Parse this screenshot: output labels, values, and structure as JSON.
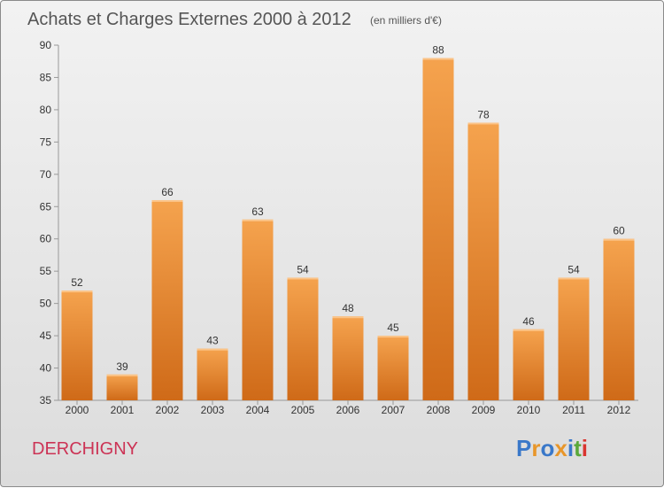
{
  "chart_data": {
    "type": "bar",
    "title": "Achats et Charges Externes 2000 à 2012",
    "subtitle": "(en milliers d'€)",
    "categories": [
      "2000",
      "2001",
      "2002",
      "2003",
      "2004",
      "2005",
      "2006",
      "2007",
      "2008",
      "2009",
      "2010",
      "2011",
      "2012"
    ],
    "values": [
      52,
      39,
      66,
      43,
      63,
      54,
      48,
      45,
      88,
      78,
      46,
      54,
      60
    ],
    "ylim": [
      35,
      90
    ],
    "yticks": [
      35,
      40,
      45,
      50,
      55,
      60,
      65,
      70,
      75,
      80,
      85,
      90
    ],
    "grid": false,
    "bar_color_top": "#f5a34e",
    "bar_color_bottom": "#cf6a18"
  },
  "footer": {
    "town": "DERCHIGNY",
    "brand": "Proxiti",
    "brand_colors": [
      "#3a78c9",
      "#e8962a",
      "#3a78c9",
      "#e8962a",
      "#3a78c9",
      "#5aa83a",
      "#d9352f"
    ]
  }
}
